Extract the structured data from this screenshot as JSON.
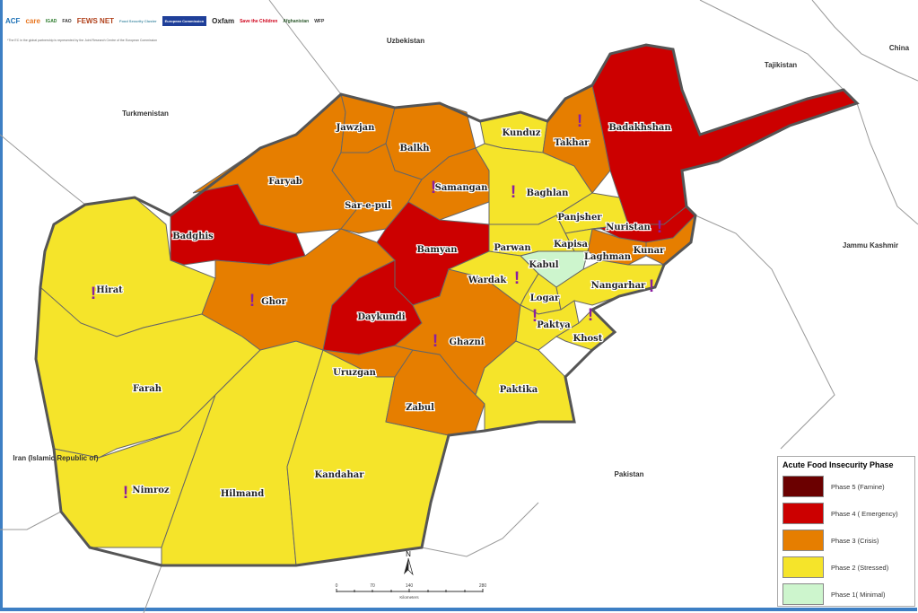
{
  "logos": {
    "items": [
      "ACF",
      "care",
      "IGAD",
      "FAO",
      "FEWS NET",
      "Food Security Cluster",
      "European Commission",
      "Oxfam",
      "Save the Children",
      "Afghanistan",
      "WFP"
    ],
    "note": "*The EC in the global partnership is represented by the Joint Research Centre of the European Commission"
  },
  "countries": {
    "uzbekistan": "Uzbekistan",
    "tajikistan": "Tajikistan",
    "china": "China",
    "turkmenistan": "Turkmenistan",
    "jammu_kashmir": "Jammu Kashmir",
    "iran": "Iran  (Islamic Republic of)",
    "pakistan": "Pakistan"
  },
  "phase_colors": {
    "5": "#6b0000",
    "4": "#cc0000",
    "3": "#e67e00",
    "2": "#f5e42a",
    "1": "#cdf5cd"
  },
  "provinces": [
    {
      "name": "Hirat",
      "phase": 2,
      "alert": true
    },
    {
      "name": "Farah",
      "phase": 2,
      "alert": false
    },
    {
      "name": "Nimroz",
      "phase": 2,
      "alert": true
    },
    {
      "name": "Hilmand",
      "phase": 2,
      "alert": false
    },
    {
      "name": "Kandahar",
      "phase": 2,
      "alert": false
    },
    {
      "name": "Badghis",
      "phase": 4,
      "alert": false
    },
    {
      "name": "Faryab",
      "phase": 3,
      "alert": false
    },
    {
      "name": "Ghor",
      "phase": 3,
      "alert": true
    },
    {
      "name": "Jawzjan",
      "phase": 3,
      "alert": false
    },
    {
      "name": "Balkh",
      "phase": 3,
      "alert": false
    },
    {
      "name": "Sar-e-pul",
      "phase": 3,
      "alert": false
    },
    {
      "name": "Samangan",
      "phase": 3,
      "alert": true
    },
    {
      "name": "Bamyan",
      "phase": 4,
      "alert": false
    },
    {
      "name": "Daykundi",
      "phase": 4,
      "alert": false
    },
    {
      "name": "Uruzgan",
      "phase": 3,
      "alert": false
    },
    {
      "name": "Zabul",
      "phase": 3,
      "alert": false
    },
    {
      "name": "Ghazni",
      "phase": 3,
      "alert": true
    },
    {
      "name": "Paktika",
      "phase": 2,
      "alert": false
    },
    {
      "name": "Kunduz",
      "phase": 2,
      "alert": false
    },
    {
      "name": "Baghlan",
      "phase": 2,
      "alert": true
    },
    {
      "name": "Takhar",
      "phase": 3,
      "alert": true
    },
    {
      "name": "Badakhshan",
      "phase": 4,
      "alert": false
    },
    {
      "name": "Panjsher",
      "phase": 2,
      "alert": false
    },
    {
      "name": "Nuristan",
      "phase": 4,
      "alert": true
    },
    {
      "name": "Kunar",
      "phase": 3,
      "alert": false
    },
    {
      "name": "Laghman",
      "phase": 3,
      "alert": false
    },
    {
      "name": "Kapisa",
      "phase": 2,
      "alert": false
    },
    {
      "name": "Parwan",
      "phase": 2,
      "alert": false
    },
    {
      "name": "Kabul",
      "phase": 1,
      "alert": false
    },
    {
      "name": "Wardak",
      "phase": 2,
      "alert": true
    },
    {
      "name": "Logar",
      "phase": 2,
      "alert": false
    },
    {
      "name": "Nangarhar",
      "phase": 2,
      "alert": true
    },
    {
      "name": "Paktya",
      "phase": 2,
      "alert": true
    },
    {
      "name": "Khost",
      "phase": 2,
      "alert": true
    }
  ],
  "alert_symbol": "!",
  "legend": {
    "title": "Acute Food Insecurity Phase",
    "items": [
      {
        "label": "Phase 5 (Famine)",
        "phase": 5
      },
      {
        "label": "Phase 4 ( Emergency)",
        "phase": 4
      },
      {
        "label": "Phase 3 (Crisis)",
        "phase": 3
      },
      {
        "label": "Phase 2 (Stressed)",
        "phase": 2
      },
      {
        "label": "Phase 1( Minimal)",
        "phase": 1
      }
    ]
  },
  "north_arrow": "N",
  "scale": {
    "ticks": [
      "0",
      "70",
      "140",
      "280"
    ],
    "unit": "Kilometers"
  }
}
